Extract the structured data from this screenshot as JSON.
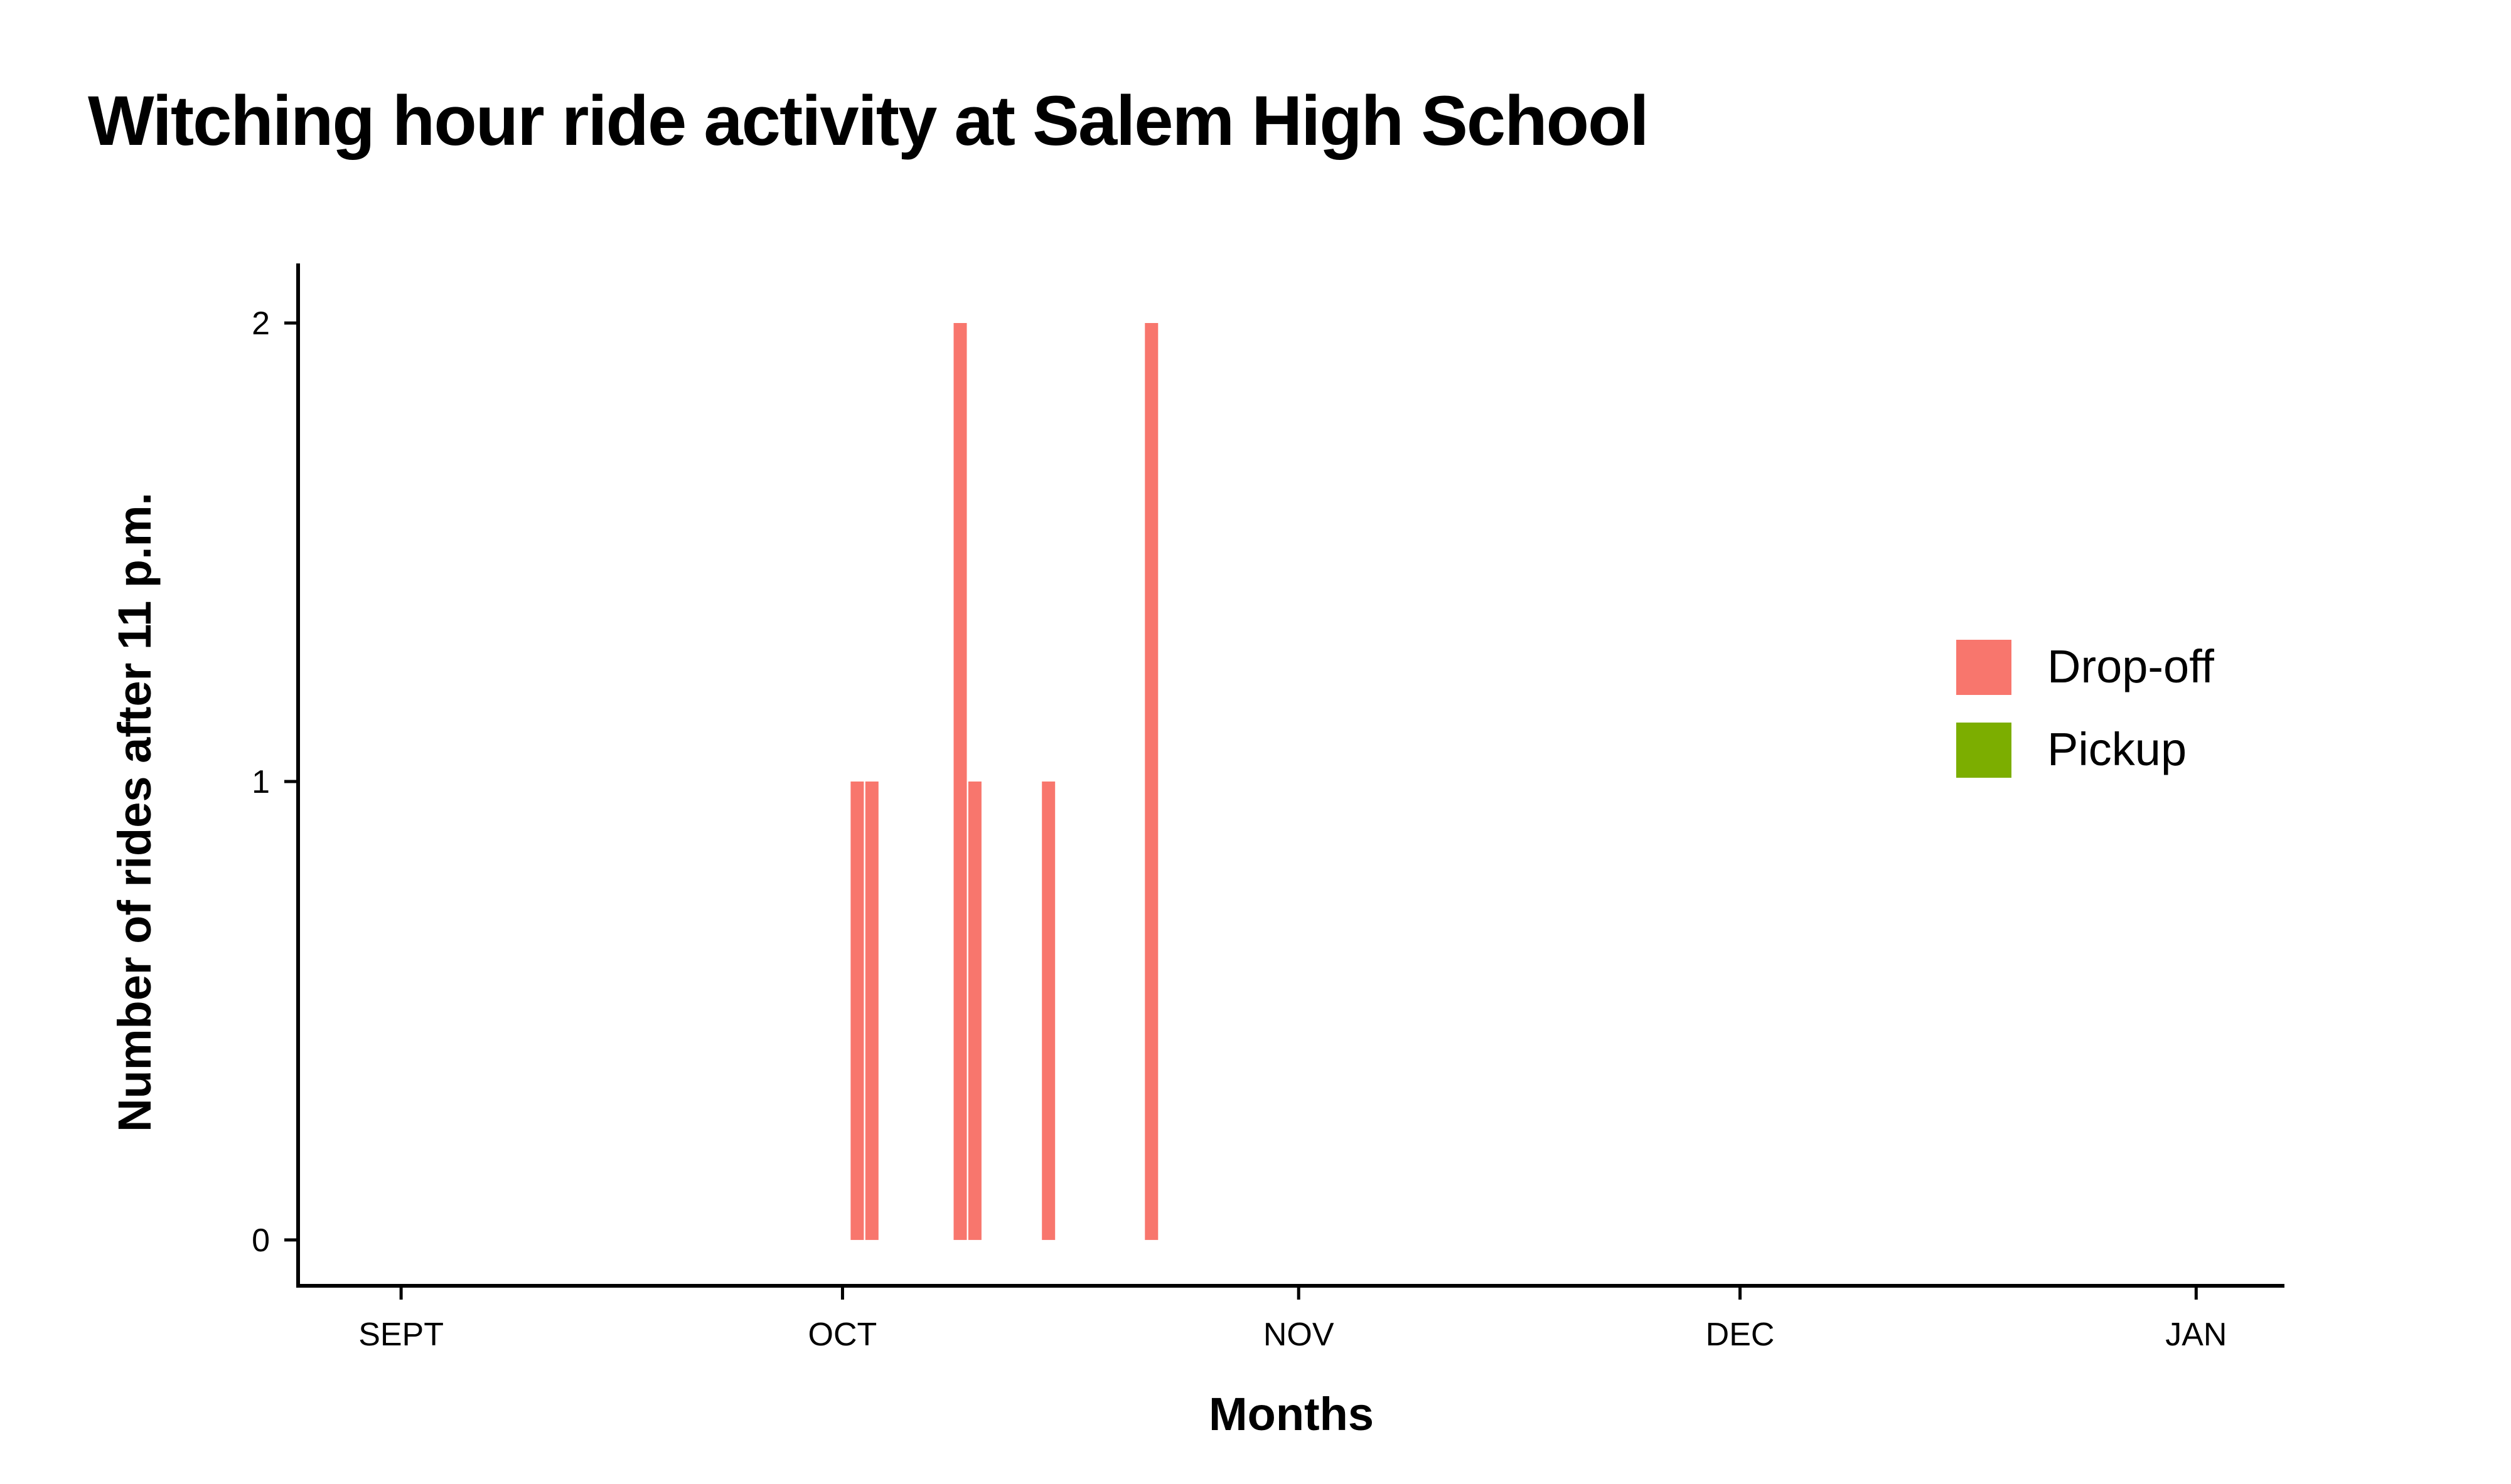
{
  "chart_data": {
    "type": "bar",
    "title": "Witching hour ride activity at Salem High School",
    "xlabel": "Months",
    "ylabel": "Number of rides after 11 p.m.",
    "x_ticks": [
      {
        "label": "SEPT",
        "date": "2018-09-01"
      },
      {
        "label": "OCT",
        "date": "2018-10-01"
      },
      {
        "label": "NOV",
        "date": "2018-11-01"
      },
      {
        "label": "DEC",
        "date": "2018-12-01"
      },
      {
        "label": "JAN",
        "date": "2019-01-01"
      }
    ],
    "xlim": [
      "2018-08-25",
      "2019-01-07"
    ],
    "y_ticks": [
      0,
      1,
      2
    ],
    "ylim": [
      -0.1,
      2.13
    ],
    "grid": false,
    "legend_position": "right",
    "series": [
      {
        "name": "Drop-off",
        "color": "#f8766d",
        "points": [
          {
            "date": "2018-10-02",
            "value": 1
          },
          {
            "date": "2018-10-03",
            "value": 1
          },
          {
            "date": "2018-10-09",
            "value": 2
          },
          {
            "date": "2018-10-10",
            "value": 1
          },
          {
            "date": "2018-10-15",
            "value": 1
          },
          {
            "date": "2018-10-22",
            "value": 2
          }
        ]
      },
      {
        "name": "Pickup",
        "color": "#7cae00",
        "points": []
      }
    ]
  }
}
